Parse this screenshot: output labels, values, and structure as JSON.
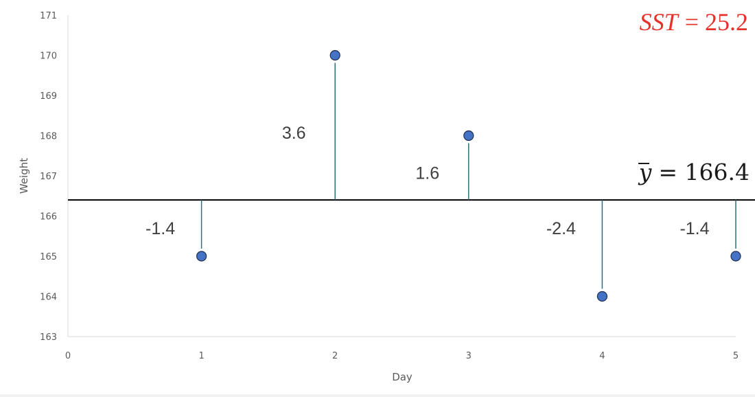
{
  "chart_data": {
    "type": "scatter",
    "xlabel": "Day",
    "ylabel": "Weight",
    "xlim": [
      0,
      5
    ],
    "ylim": [
      163,
      171
    ],
    "x_ticks": [
      "0",
      "1",
      "2",
      "3",
      "4",
      "5"
    ],
    "y_ticks": [
      "163",
      "164",
      "165",
      "166",
      "167",
      "168",
      "169",
      "170",
      "171"
    ],
    "grid": false,
    "x": [
      1,
      2,
      3,
      4,
      5
    ],
    "y": [
      165,
      170,
      168,
      164,
      165
    ],
    "mean": 166.4,
    "deviation_labels": [
      "-1.4",
      "3.6",
      "1.6",
      "-2.4",
      "-1.4"
    ],
    "mean_label": {
      "lhs": "y",
      "rhs": "= 166.4"
    },
    "sst_label": {
      "lhs": "SST",
      "rhs": "= 25.2"
    },
    "colors": {
      "marker_fill": "#4472c4",
      "marker_stroke": "#1f2f4f",
      "stem": "#2e6f78",
      "mean_line": "#000000",
      "sst_text": "#e8302a",
      "axis": "#d9d9d9"
    }
  }
}
